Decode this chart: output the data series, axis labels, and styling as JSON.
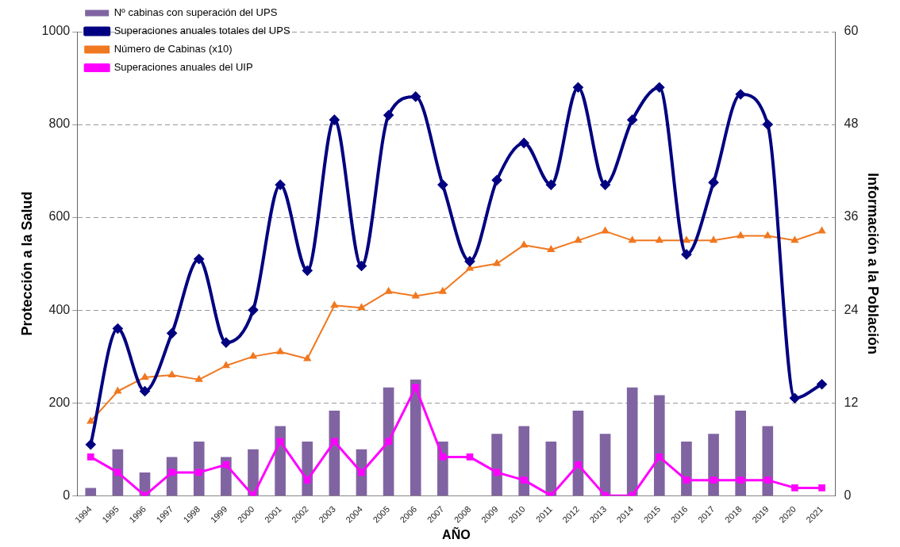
{
  "chart_data": {
    "type": "bar",
    "xlabel": "AÑO",
    "ylabel": "Protección a la Salud",
    "y2label": "Información a la Población",
    "categories": [
      "1994",
      "1995",
      "1996",
      "1997",
      "1998",
      "1999",
      "2000",
      "2001",
      "2002",
      "2003",
      "2004",
      "2005",
      "2006",
      "2007",
      "2008",
      "2009",
      "2010",
      "2011",
      "2012",
      "2013",
      "2014",
      "2015",
      "2016",
      "2017",
      "2018",
      "2019",
      "2020",
      "2021"
    ],
    "series": [
      {
        "name": "Nº cabinas con superación del UPS",
        "axis": "y2",
        "color": "#8064a2",
        "values": [
          1,
          6,
          3,
          5,
          7,
          5,
          6,
          9,
          7,
          11,
          6,
          14,
          15,
          7,
          null,
          8,
          9,
          7,
          11,
          8,
          14,
          13,
          7,
          8,
          11,
          9,
          0,
          0
        ]
      },
      {
        "name": "Superaciones anuales totales del UPS",
        "type": "line",
        "marker": "diamond",
        "color": "#000080",
        "values": [
          110,
          360,
          225,
          350,
          510,
          330,
          400,
          670,
          485,
          810,
          495,
          820,
          860,
          670,
          505,
          680,
          760,
          670,
          880,
          670,
          810,
          880,
          520,
          675,
          865,
          800,
          210,
          240
        ]
      },
      {
        "name": "Número de Cabinas (x10)",
        "type": "line",
        "marker": "triangle",
        "color": "#f07820",
        "values": [
          160,
          225,
          255,
          260,
          250,
          280,
          300,
          310,
          295,
          410,
          405,
          440,
          430,
          440,
          490,
          500,
          540,
          530,
          550,
          570,
          550,
          550,
          550,
          550,
          560,
          560,
          550,
          570
        ]
      },
      {
        "name": "Superaciones anuales del UIP",
        "type": "line",
        "marker": "square",
        "axis": "y2",
        "color": "#ff00ff",
        "values": [
          5,
          3,
          0,
          3,
          3,
          4,
          0,
          7,
          2,
          7,
          3,
          7,
          14,
          5,
          5,
          3,
          2,
          0,
          4,
          0,
          0,
          5,
          2,
          2,
          2,
          2,
          1,
          1
        ]
      }
    ],
    "ylim": [
      0,
      1000
    ],
    "yticks": [
      0,
      200,
      400,
      600,
      800,
      1000
    ],
    "y2lim": [
      0,
      60
    ],
    "y2ticks": [
      0,
      12,
      24,
      36,
      48,
      60
    ],
    "grid": "y",
    "legend": "top left"
  }
}
